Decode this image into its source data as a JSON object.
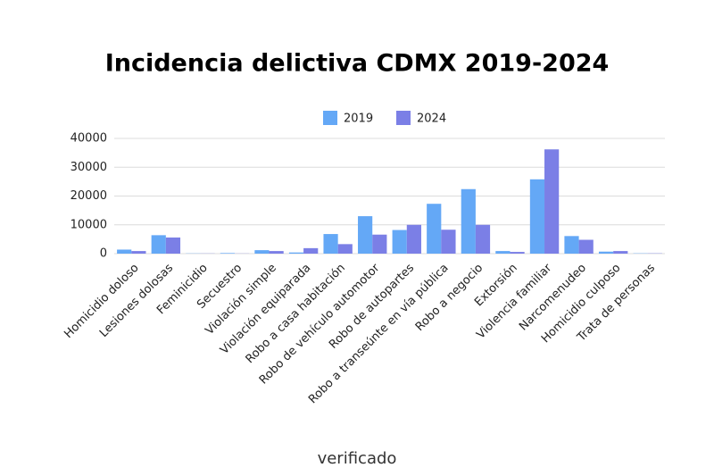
{
  "chart_data": {
    "type": "bar",
    "title": "Incidencia delictiva CDMX 2019-2024",
    "categories": [
      "Homicidio doloso",
      "Lesiones dolosas",
      "Feminicidio",
      "Secuestro",
      "Violación simple",
      "Violación equiparada",
      "Robo a casa habitación",
      "Robo de vehículo automotor",
      "Robo de autopartes",
      "Robo a transeúnte en vía pública",
      "Robo a negocio",
      "Extorsión",
      "Violencia familiar",
      "Narcomenudeo",
      "Homicidio culposo",
      "Trata de personas"
    ],
    "series": [
      {
        "name": "2019",
        "color": "#64a8f6",
        "values": [
          1400,
          6400,
          70,
          200,
          1200,
          400,
          6800,
          13000,
          8200,
          17300,
          22400,
          900,
          25800,
          6100,
          700,
          100
        ]
      },
      {
        "name": "2024",
        "color": "#7b7fe6",
        "values": [
          900,
          5600,
          60,
          50,
          900,
          1900,
          3300,
          6600,
          10000,
          8300,
          10000,
          600,
          36200,
          4800,
          900,
          100
        ]
      }
    ],
    "ylim": [
      0,
      40000
    ],
    "yticks": [
      0,
      10000,
      20000,
      30000,
      40000
    ],
    "grid": true,
    "legend": "top"
  },
  "logo": "verificado"
}
